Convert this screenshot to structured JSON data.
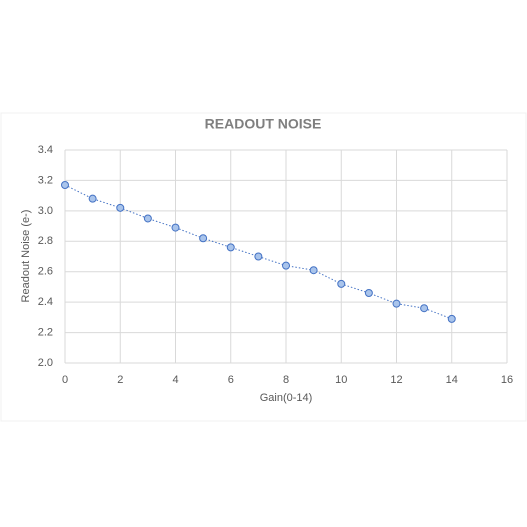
{
  "chart_data": {
    "type": "line",
    "title": "READOUT NOISE",
    "x_label": "Gain(0-14)",
    "y_label": "Readout Noise (e-)",
    "x": [
      0,
      1,
      2,
      3,
      4,
      5,
      6,
      7,
      8,
      9,
      10,
      11,
      12,
      13,
      14
    ],
    "series": [
      {
        "name": "Readout Noise",
        "color": "#4472c4",
        "values": [
          3.17,
          3.08,
          3.02,
          2.95,
          2.89,
          2.82,
          2.76,
          2.7,
          2.64,
          2.61,
          2.52,
          2.46,
          2.39,
          2.36,
          2.29
        ]
      }
    ],
    "xlim": [
      0,
      16
    ],
    "xticks": [
      0,
      2,
      4,
      6,
      8,
      10,
      12,
      14,
      16
    ],
    "ylim": [
      2.0,
      3.4
    ],
    "yticks": [
      {
        "value": 2.0,
        "label": "2.0"
      },
      2.2,
      2.4,
      2.6,
      2.8,
      {
        "value": 3.0,
        "label": "3.0"
      },
      3.2,
      3.4
    ],
    "grid": true
  }
}
